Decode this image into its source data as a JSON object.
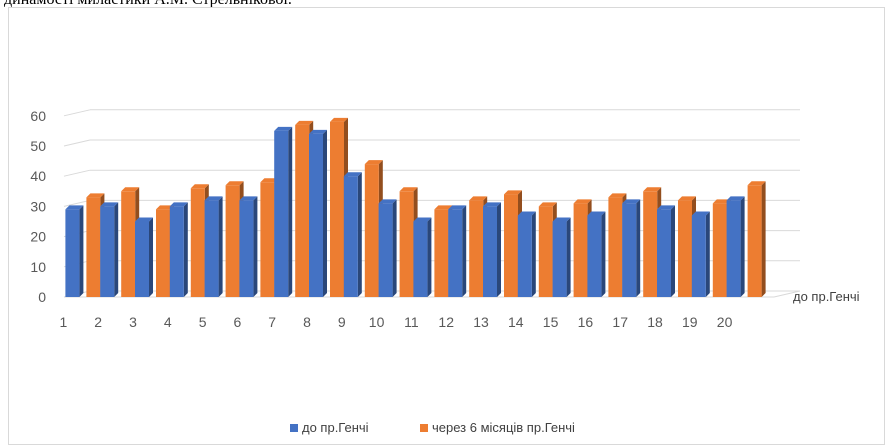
{
  "caption_fragment": "динамості миластики А.М. Стрельнікової.",
  "chart_data": {
    "type": "bar",
    "title": "",
    "xlabel": "",
    "ylabel": "",
    "categories": [
      "1",
      "2",
      "3",
      "4",
      "5",
      "6",
      "7",
      "8",
      "9",
      "10",
      "11",
      "12",
      "13",
      "14",
      "15",
      "16",
      "17",
      "18",
      "19",
      "20"
    ],
    "series": [
      {
        "name": "до пр.Генчі",
        "color": "#4472C4",
        "values": [
          29,
          30,
          25,
          30,
          32,
          32,
          55,
          54,
          40,
          31,
          25,
          29,
          30,
          27,
          25,
          27,
          31,
          29,
          27,
          32
        ]
      },
      {
        "name": "через 6 місяців пр.Генчі",
        "color": "#ED7D31",
        "values": [
          35,
          37,
          31,
          38,
          39,
          40,
          59,
          60,
          46,
          37,
          31,
          34,
          36,
          32,
          33,
          35,
          37,
          34,
          33,
          39
        ]
      }
    ],
    "ylim": [
      0,
      60
    ],
    "yticks": [
      0,
      10,
      20,
      30,
      40,
      50,
      60
    ],
    "depth_axis_label": "до пр.Генчі",
    "grid": true,
    "legend_position": "bottom"
  }
}
